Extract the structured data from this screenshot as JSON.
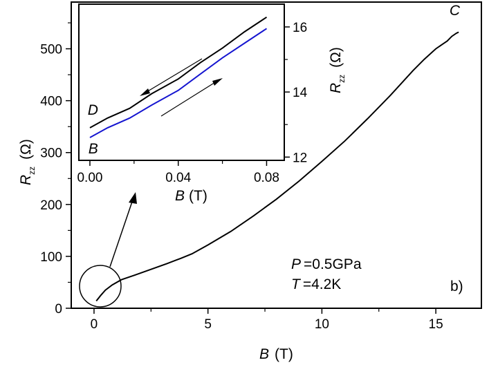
{
  "chart_data": [
    {
      "type": "line",
      "xlim": [
        -1,
        17
      ],
      "ylim": [
        0,
        590
      ],
      "x_ticks": [
        0,
        5,
        10,
        15
      ],
      "y_ticks": [
        0,
        100,
        200,
        300,
        400,
        500
      ],
      "x_tick_labels": [
        "0",
        "5",
        "10",
        "15"
      ],
      "y_tick_labels": [
        "0",
        "100",
        "200",
        "300",
        "400",
        "500"
      ],
      "xlabel": {
        "symbol": "B",
        "unit": "(T)"
      },
      "ylabel": {
        "symbol": "R",
        "sub": "zz",
        "unit": "(Ω)"
      },
      "series": [
        {
          "color": "#000000",
          "x": [
            0.1,
            0.3,
            0.5,
            0.8,
            1.2,
            1.8,
            2.5,
            3.2,
            3.8,
            4.3,
            5.0,
            6.0,
            7.0,
            8.0,
            9.0,
            10.0,
            11.0,
            12.0,
            13.0,
            14.0,
            14.5,
            15.0,
            15.3,
            15.5,
            15.7,
            15.9,
            16.0
          ],
          "y": [
            14,
            25,
            35,
            45,
            55,
            64,
            75,
            86,
            96,
            105,
            122,
            148,
            178,
            210,
            245,
            283,
            322,
            365,
            410,
            458,
            480,
            500,
            509,
            515,
            524,
            530,
            532
          ]
        }
      ],
      "annotations": [
        {
          "text": "C",
          "x": 15.6,
          "y": 565
        },
        {
          "symbol": "P",
          "value": "=0.5GPa"
        },
        {
          "symbol": "T",
          "value": "=4.2K"
        },
        {
          "text": "b)"
        }
      ]
    },
    {
      "type": "line",
      "inset": true,
      "xlim": [
        -0.005,
        0.088
      ],
      "ylim": [
        11.9,
        16.7
      ],
      "x_ticks": [
        0.0,
        0.04,
        0.08
      ],
      "y_ticks": [
        12,
        14,
        16
      ],
      "x_tick_labels": [
        "0.00",
        "0.04",
        "0.08"
      ],
      "y_tick_labels": [
        "12",
        "14",
        "16"
      ],
      "xlabel": {
        "symbol": "B",
        "unit": "(T)"
      },
      "ylabel": {
        "symbol": "R",
        "sub": "zz",
        "unit": "(Ω)"
      },
      "series": [
        {
          "color": "#000000",
          "x": [
            0.0,
            0.008,
            0.018,
            0.028,
            0.04,
            0.05,
            0.06,
            0.07,
            0.08
          ],
          "y": [
            12.9,
            13.2,
            13.5,
            13.95,
            14.4,
            14.9,
            15.35,
            15.85,
            16.3
          ]
        },
        {
          "color": "#1515d0",
          "x": [
            0.0,
            0.008,
            0.018,
            0.028,
            0.04,
            0.05,
            0.06,
            0.07,
            0.08
          ],
          "y": [
            12.6,
            12.9,
            13.2,
            13.6,
            14.05,
            14.55,
            15.05,
            15.5,
            15.95
          ]
        }
      ],
      "annotations": [
        {
          "text": "D",
          "x": -0.001,
          "y": 13.3
        },
        {
          "text": "B",
          "x": -0.001,
          "y": 12.2
        }
      ]
    }
  ]
}
